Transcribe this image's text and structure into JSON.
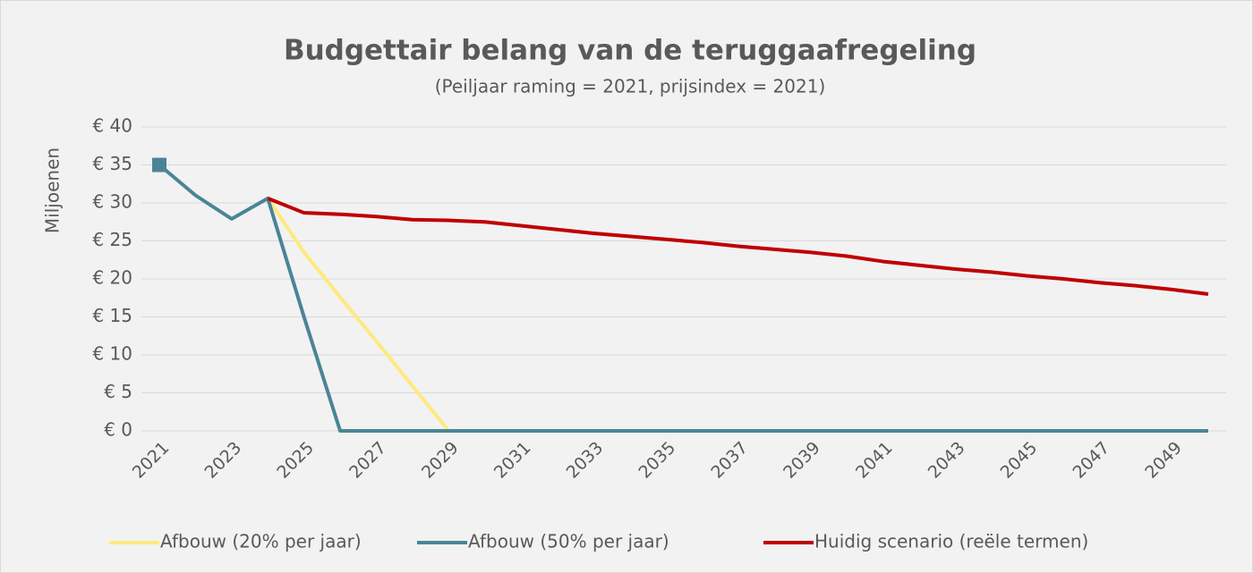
{
  "chart_data": {
    "type": "line",
    "title": "Budgettair belang van de teruggaafregeling",
    "subtitle": "(Peiljaar raming = 2021, prijsindex = 2021)",
    "y_label": "Miljoenen",
    "x": [
      2021,
      2022,
      2023,
      2024,
      2025,
      2026,
      2027,
      2028,
      2029,
      2030,
      2031,
      2032,
      2033,
      2034,
      2035,
      2036,
      2037,
      2038,
      2039,
      2040,
      2041,
      2042,
      2043,
      2044,
      2045,
      2046,
      2047,
      2048,
      2049,
      2050
    ],
    "xlim": [
      2021,
      2050
    ],
    "xticks": [
      2021,
      2023,
      2025,
      2027,
      2029,
      2031,
      2033,
      2035,
      2037,
      2039,
      2041,
      2043,
      2045,
      2047,
      2049
    ],
    "ylim": [
      0,
      40
    ],
    "yticks": [
      {
        "value": 0,
        "label": "€ 0"
      },
      {
        "value": 5,
        "label": "€ 5"
      },
      {
        "value": 10,
        "label": "€ 10"
      },
      {
        "value": 15,
        "label": "€ 15"
      },
      {
        "value": 20,
        "label": "€ 20"
      },
      {
        "value": 25,
        "label": "€ 25"
      },
      {
        "value": 30,
        "label": "€ 30"
      },
      {
        "value": 35,
        "label": "€ 35"
      },
      {
        "value": 40,
        "label": "€ 40"
      }
    ],
    "grid": true,
    "legend": "bottom",
    "series": [
      {
        "name": "Afbouw (20% per jaar)",
        "color": "#ffe97f",
        "values": [
          null,
          null,
          null,
          30.6,
          23.5,
          17.6,
          11.8,
          5.9,
          0,
          0,
          0,
          0,
          0,
          0,
          0,
          0,
          0,
          0,
          0,
          0,
          0,
          0,
          0,
          0,
          0,
          0,
          0,
          0,
          0,
          0
        ]
      },
      {
        "name": "Afbouw (50% per jaar)",
        "color": "#4a8595",
        "first_point_marker": "square",
        "values": [
          35,
          31,
          27.9,
          30.6,
          15,
          0,
          0,
          0,
          0,
          0,
          0,
          0,
          0,
          0,
          0,
          0,
          0,
          0,
          0,
          0,
          0,
          0,
          0,
          0,
          0,
          0,
          0,
          0,
          0,
          0
        ]
      },
      {
        "name": "Huidig scenario (reële termen)",
        "color": "#c00000",
        "values": [
          null,
          null,
          null,
          30.6,
          28.7,
          28.5,
          28.2,
          27.8,
          27.7,
          27.5,
          27.0,
          26.5,
          26.0,
          25.6,
          25.2,
          24.8,
          24.3,
          23.9,
          23.5,
          23.0,
          22.3,
          21.8,
          21.3,
          20.9,
          20.4,
          20.0,
          19.5,
          19.1,
          18.6,
          18.0
        ]
      }
    ]
  }
}
